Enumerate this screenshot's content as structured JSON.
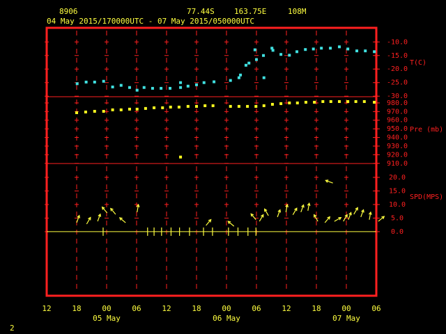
{
  "header": {
    "station": "8906",
    "lat": "77.44S",
    "lon": "163.75E",
    "elevation": "108M",
    "period": "04 May 2015/170000UTC - 07 May 2015/050000UTC"
  },
  "footer": "2",
  "x_axis": {
    "xlim": [
      0,
      66
    ],
    "xticks": [
      {
        "value": 0,
        "label": "12"
      },
      {
        "value": 6,
        "label": "18"
      },
      {
        "value": 12,
        "label": "00"
      },
      {
        "value": 18,
        "label": "06"
      },
      {
        "value": 24,
        "label": "12"
      },
      {
        "value": 30,
        "label": "18"
      },
      {
        "value": 36,
        "label": "00"
      },
      {
        "value": 42,
        "label": "06"
      },
      {
        "value": 48,
        "label": "12"
      },
      {
        "value": 54,
        "label": "18"
      },
      {
        "value": 60,
        "label": "00"
      },
      {
        "value": 66,
        "label": "06"
      }
    ],
    "day_labels": [
      {
        "value": 12,
        "label": "05 May"
      },
      {
        "value": 36,
        "label": "06 May"
      },
      {
        "value": 60,
        "label": "07 May"
      }
    ]
  },
  "chart_data": [
    {
      "type": "scatter",
      "ylabel": "T(C)",
      "color": "#40e0e0",
      "x": [
        6.1,
        7.9,
        9.6,
        11.4,
        13.2,
        14.9,
        16.6,
        18.1,
        19.5,
        21.2,
        22.9,
        24.7,
        26.8,
        26.8,
        28.3,
        30.0,
        31.5,
        33.5,
        36.8,
        38.5,
        38.8,
        39.9,
        40.5,
        41.7,
        42.0,
        43.4,
        43.5,
        45.1,
        45.3,
        46.9,
        48.6,
        50.1,
        51.8,
        53.4,
        55.0,
        56.8,
        58.6,
        60.3,
        62.1,
        63.8,
        65.6
      ],
      "values": [
        -25.4,
        -24.8,
        -24.8,
        -24.5,
        -26.6,
        -26.0,
        -26.8,
        -27.8,
        -26.8,
        -27.1,
        -27.1,
        -27.1,
        -25.0,
        -26.8,
        -26.3,
        -25.8,
        -25.0,
        -24.7,
        -24.2,
        -23.2,
        -22.2,
        -18.6,
        -17.8,
        -12.9,
        -16.5,
        -15.0,
        -23.2,
        -12.3,
        -13.1,
        -14.6,
        -14.9,
        -13.6,
        -12.8,
        -12.6,
        -12.3,
        -12.3,
        -11.8,
        -12.6,
        -13.3,
        -13.3,
        -13.6
      ],
      "ylim": [
        -30.2,
        -4.8
      ],
      "yticks": [
        {
          "value": -10,
          "label": "-10.0"
        },
        {
          "value": -15,
          "label": "-15.0"
        },
        {
          "value": -20,
          "label": "-20.0"
        },
        {
          "value": -25,
          "label": "-25.0"
        },
        {
          "value": -30,
          "label": "-30.0"
        }
      ]
    },
    {
      "type": "scatter",
      "ylabel": "Pre (mb)",
      "color": "#ffff20",
      "x": [
        6.0,
        7.8,
        9.6,
        11.4,
        13.2,
        14.9,
        16.6,
        18.1,
        19.8,
        21.5,
        23.2,
        24.8,
        26.8,
        26.5,
        28.3,
        30.0,
        31.7,
        33.3,
        36.8,
        38.5,
        40.2,
        41.9,
        43.5,
        45.2,
        46.9,
        48.6,
        50.2,
        51.9,
        53.6,
        55.3,
        56.9,
        58.6,
        60.3,
        61.9,
        63.6,
        65.6
      ],
      "values": [
        968.7,
        969.5,
        970.3,
        970.3,
        972.0,
        972.0,
        972.8,
        972.8,
        973.6,
        974.4,
        974.4,
        975.2,
        917.3,
        975.2,
        976.0,
        976.0,
        976.8,
        976.8,
        976.0,
        976.0,
        976.0,
        976.0,
        976.8,
        978.4,
        979.2,
        980.0,
        980.0,
        980.8,
        980.8,
        981.6,
        981.6,
        981.6,
        981.6,
        981.6,
        981.6,
        980.8
      ],
      "ylim": [
        909.8,
        987.2
      ],
      "yticks": [
        {
          "value": 910,
          "label": "910.0"
        },
        {
          "value": 920,
          "label": "920.0"
        },
        {
          "value": 930,
          "label": "930.0"
        },
        {
          "value": 940,
          "label": "940.0"
        },
        {
          "value": 950,
          "label": "950.0"
        },
        {
          "value": 960,
          "label": "960.0"
        },
        {
          "value": 970,
          "label": "970.0"
        },
        {
          "value": 980,
          "label": "980.0"
        }
      ]
    },
    {
      "type": "wind",
      "ylabel": "SPD(MPS)",
      "color": "#ffff40",
      "x": [
        6.0,
        8.0,
        10.2,
        12.1,
        13.8,
        15.8,
        18.1,
        11.3,
        20.2,
        21.5,
        23.0,
        24.9,
        26.6,
        28.6,
        31.4,
        33.2,
        36.4,
        38.3,
        40.3,
        41.9,
        31.9,
        37.5,
        41.9,
        42.6,
        44.4,
        46.2,
        47.9,
        49.3,
        50.9,
        52.3,
        54.3,
        55.7,
        57.6,
        57.3,
        59.4,
        60.4,
        61.5,
        62.9,
        64.6,
        66.4
      ],
      "values": [
        3.3,
        2.8,
        3.8,
        6.9,
        6.4,
        3.3,
        7.2,
        0,
        0,
        0,
        0,
        0,
        0,
        0,
        0,
        0,
        0,
        0,
        0,
        0,
        2.3,
        2.0,
        4.4,
        3.8,
        5.9,
        5.4,
        7.2,
        6.2,
        7.2,
        7.7,
        3.8,
        3.3,
        3.8,
        17.9,
        3.8,
        4.4,
        6.4,
        5.4,
        4.4,
        3.8
      ],
      "directions": [
        20,
        30,
        20,
        320,
        320,
        310,
        10,
        0,
        0,
        0,
        0,
        0,
        0,
        0,
        0,
        0,
        0,
        0,
        0,
        0,
        40,
        310,
        320,
        30,
        330,
        20,
        10,
        30,
        20,
        10,
        330,
        40,
        60,
        290,
        30,
        20,
        30,
        20,
        10,
        50
      ],
      "ylim": [
        -23.6,
        25.1
      ],
      "yticks": [
        {
          "value": 0,
          "label": "0.0"
        },
        {
          "value": 5,
          "label": "5.0"
        },
        {
          "value": 10,
          "label": "10.0"
        },
        {
          "value": 15,
          "label": "15.0"
        },
        {
          "value": 20,
          "label": "20.0"
        }
      ]
    }
  ]
}
